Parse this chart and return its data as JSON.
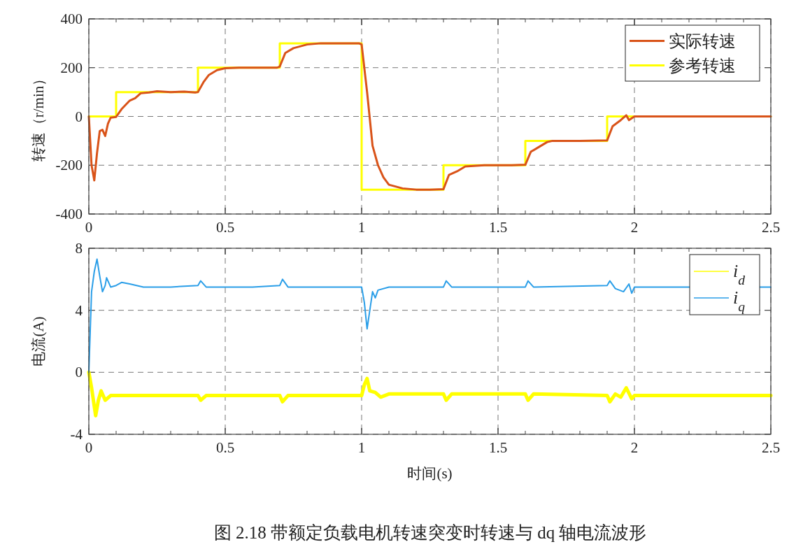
{
  "chart_data": [
    {
      "type": "line",
      "ylabel": "转速（r/min）",
      "xlim": [
        0,
        2.5
      ],
      "ylim": [
        -400,
        400
      ],
      "xticks": [
        0,
        0.5,
        1,
        1.5,
        2,
        2.5
      ],
      "yticks": [
        -400,
        -200,
        0,
        200,
        400
      ],
      "grid": true,
      "legend": "top right",
      "series": [
        {
          "name": "实际转速",
          "color": "#d95319",
          "x": [
            0,
            0.01,
            0.02,
            0.03,
            0.04,
            0.05,
            0.06,
            0.07,
            0.08,
            0.1,
            0.12,
            0.15,
            0.17,
            0.19,
            0.22,
            0.25,
            0.3,
            0.35,
            0.39,
            0.4,
            0.42,
            0.44,
            0.47,
            0.5,
            0.55,
            0.6,
            0.65,
            0.69,
            0.7,
            0.72,
            0.75,
            0.8,
            0.85,
            0.9,
            0.95,
            0.99,
            1.0,
            1.02,
            1.04,
            1.06,
            1.08,
            1.1,
            1.15,
            1.2,
            1.25,
            1.3,
            1.32,
            1.35,
            1.38,
            1.45,
            1.55,
            1.6,
            1.62,
            1.65,
            1.68,
            1.7,
            1.8,
            1.9,
            1.92,
            1.95,
            1.97,
            1.98,
            2.0,
            2.1,
            2.3,
            2.5
          ],
          "values": [
            0,
            -200,
            -262,
            -150,
            -60,
            -55,
            -80,
            -30,
            -5,
            -2,
            30,
            65,
            75,
            95,
            98,
            103,
            100,
            102,
            98,
            100,
            140,
            170,
            190,
            198,
            200,
            200,
            200,
            200,
            205,
            260,
            280,
            295,
            300,
            300,
            300,
            300,
            295,
            100,
            -120,
            -200,
            -250,
            -280,
            -295,
            -300,
            -300,
            -298,
            -240,
            -225,
            -205,
            -200,
            -200,
            -198,
            -145,
            -125,
            -105,
            -100,
            -100,
            -98,
            -40,
            -15,
            5,
            -15,
            0,
            0,
            0,
            0
          ]
        },
        {
          "name": "参考转速",
          "color": "#ffff00",
          "type": "step",
          "x": [
            0,
            0.1,
            0.4,
            0.7,
            1.0,
            1.3,
            1.6,
            1.9,
            2.5
          ],
          "values": [
            0,
            100,
            200,
            300,
            -300,
            -200,
            -100,
            0,
            0
          ]
        }
      ]
    },
    {
      "type": "line",
      "xlabel": "时间(s)",
      "ylabel": "电流(A)",
      "xlim": [
        0,
        2.5
      ],
      "ylim": [
        -4,
        8
      ],
      "xticks": [
        0,
        0.5,
        1,
        1.5,
        2,
        2.5
      ],
      "yticks": [
        -4,
        0,
        4,
        8
      ],
      "grid": true,
      "legend": "top right",
      "annotations": [
        "图 2.18  带额定负载电机转速突变时转速与 dq 轴电流波形"
      ],
      "series": [
        {
          "name": "i$_{d}$",
          "color": "#ffff00",
          "x": [
            0,
            0.01,
            0.02,
            0.025,
            0.035,
            0.045,
            0.06,
            0.08,
            0.2,
            0.4,
            0.41,
            0.43,
            0.7,
            0.71,
            0.73,
            1.0,
            1.01,
            1.02,
            1.03,
            1.05,
            1.07,
            1.1,
            1.3,
            1.31,
            1.33,
            1.6,
            1.61,
            1.63,
            1.9,
            1.91,
            1.93,
            1.95,
            1.97,
            1.99,
            2.0,
            2.5
          ],
          "values": [
            0,
            -1.0,
            -2.2,
            -2.8,
            -1.8,
            -1.2,
            -1.8,
            -1.5,
            -1.5,
            -1.5,
            -1.8,
            -1.5,
            -1.5,
            -1.9,
            -1.5,
            -1.5,
            -0.8,
            -0.4,
            -1.2,
            -1.3,
            -1.6,
            -1.4,
            -1.4,
            -1.8,
            -1.4,
            -1.4,
            -1.8,
            -1.4,
            -1.5,
            -1.9,
            -1.4,
            -1.6,
            -1.0,
            -1.7,
            -1.5,
            -1.5
          ]
        },
        {
          "name": "i$_{q}$",
          "color": "#2a9ee8",
          "x": [
            0,
            0.01,
            0.02,
            0.03,
            0.04,
            0.05,
            0.06,
            0.065,
            0.08,
            0.1,
            0.12,
            0.15,
            0.2,
            0.3,
            0.4,
            0.41,
            0.43,
            0.5,
            0.6,
            0.7,
            0.71,
            0.73,
            0.85,
            1.0,
            1.01,
            1.02,
            1.03,
            1.04,
            1.05,
            1.06,
            1.1,
            1.3,
            1.31,
            1.33,
            1.6,
            1.61,
            1.63,
            1.9,
            1.91,
            1.93,
            1.96,
            1.98,
            1.99,
            2.0,
            2.2,
            2.5
          ],
          "values": [
            0,
            5.2,
            6.5,
            7.3,
            6.2,
            5.2,
            5.6,
            6.1,
            5.5,
            5.6,
            5.8,
            5.7,
            5.5,
            5.5,
            5.6,
            5.9,
            5.5,
            5.5,
            5.5,
            5.6,
            6.0,
            5.5,
            5.5,
            5.5,
            4.5,
            2.8,
            4.0,
            5.2,
            4.8,
            5.3,
            5.5,
            5.5,
            5.9,
            5.5,
            5.5,
            5.9,
            5.5,
            5.6,
            5.9,
            5.4,
            5.2,
            5.7,
            5.1,
            5.5,
            5.5,
            5.5
          ]
        }
      ]
    }
  ]
}
